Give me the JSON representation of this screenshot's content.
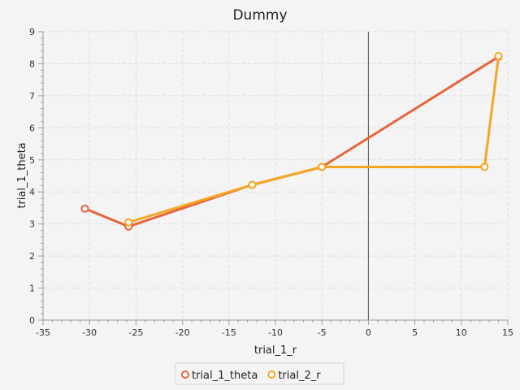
{
  "chart_data": {
    "type": "line",
    "title": "Dummy",
    "xlabel": "trial_1_r",
    "ylabel": "trial_1_theta",
    "xlim": [
      -35,
      15
    ],
    "ylim": [
      0,
      9
    ],
    "xticks": [
      -35,
      -30,
      -25,
      -20,
      -15,
      -10,
      -5,
      0,
      5,
      10,
      15
    ],
    "yticks": [
      0,
      1,
      2,
      3,
      4,
      5,
      6,
      7,
      8,
      9
    ],
    "grid": true,
    "legend_position": "bottom-center",
    "series": [
      {
        "name": "trial_1_theta",
        "color": "#e8643a",
        "points": [
          [
            -30.5,
            3.48
          ],
          [
            -25.8,
            2.92
          ],
          [
            -12.5,
            4.22
          ],
          [
            -5.0,
            4.78
          ],
          [
            14.0,
            8.22
          ]
        ]
      },
      {
        "name": "trial_2_r",
        "color": "#f5a623",
        "points": [
          [
            -25.8,
            3.05
          ],
          [
            -12.5,
            4.22
          ],
          [
            -5.0,
            4.78
          ],
          [
            12.5,
            4.78
          ],
          [
            14.0,
            8.24
          ]
        ]
      }
    ]
  }
}
